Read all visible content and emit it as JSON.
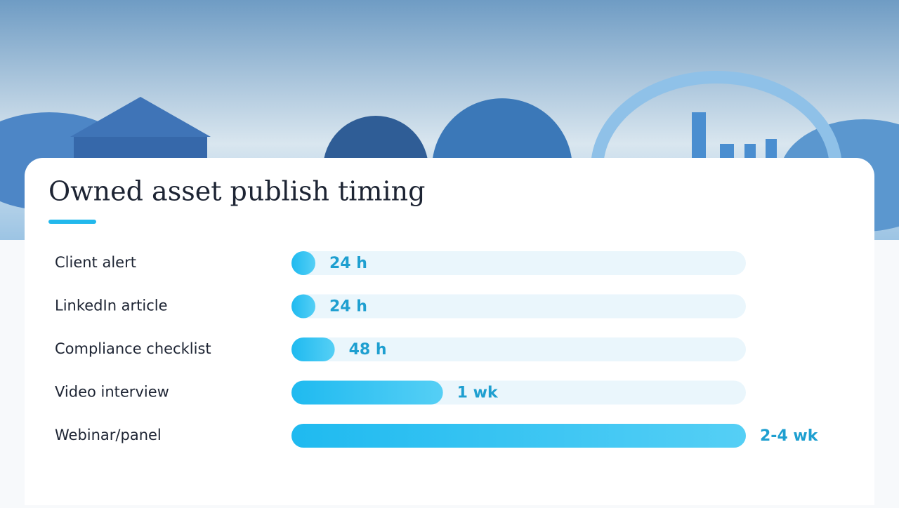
{
  "chart_data": {
    "type": "bar",
    "orientation": "horizontal",
    "title": "Owned asset publish timing",
    "categories": [
      "Client alert",
      "LinkedIn article",
      "Compliance checklist",
      "Video interview",
      "Webinar/panel"
    ],
    "values": [
      24,
      24,
      48,
      168,
      504
    ],
    "value_labels": [
      "24 h",
      "24 h",
      "48 h",
      "1 wk",
      "2-4 wk"
    ],
    "xlim": [
      0,
      504
    ],
    "color": "#29bff0"
  }
}
